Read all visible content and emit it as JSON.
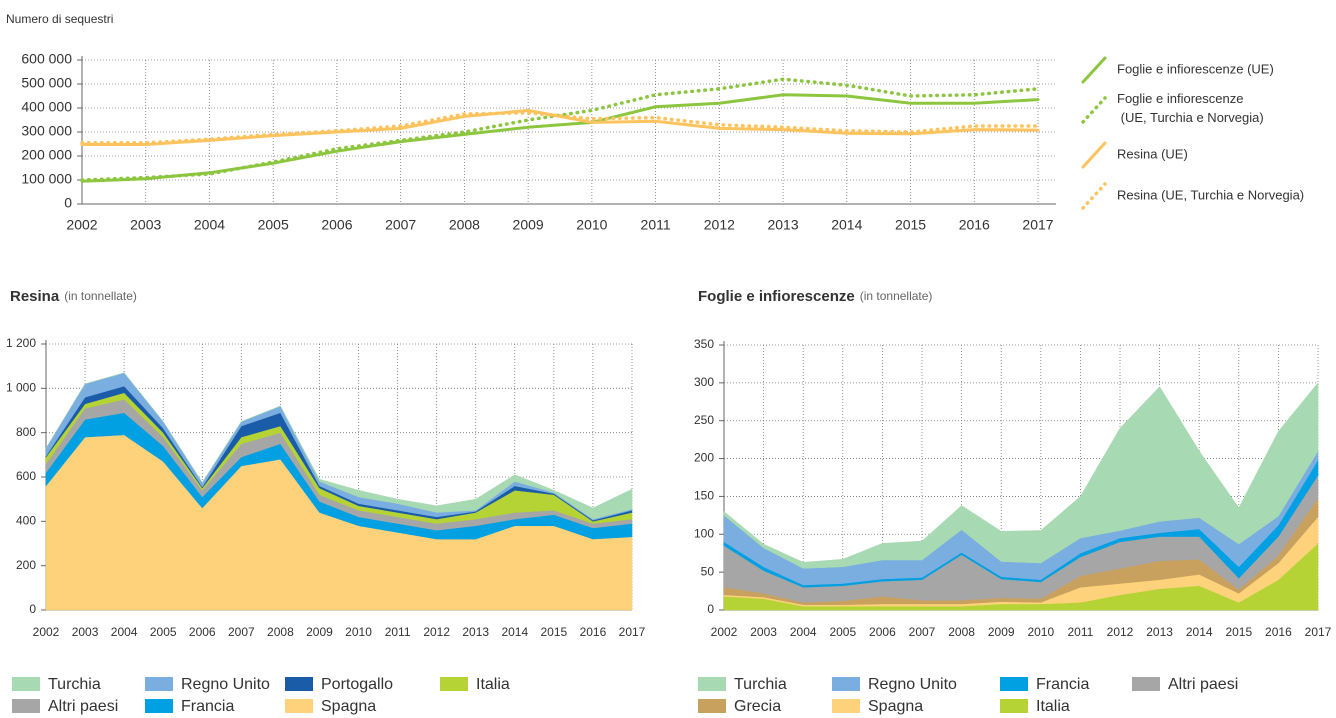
{
  "chart_data": [
    {
      "type": "line",
      "ylabel": "Numero di sequestri",
      "categories": [
        "2002",
        "2003",
        "2004",
        "2005",
        "2006",
        "2007",
        "2008",
        "2009",
        "2010",
        "2011",
        "2012",
        "2013",
        "2014",
        "2015",
        "2016",
        "2017"
      ],
      "ylim": [
        0,
        600000
      ],
      "yticks": [
        0,
        {
          "value": 100000,
          "label": "100 000"
        },
        {
          "value": 200000,
          "label": "200 000"
        },
        {
          "value": 300000,
          "label": "300 000"
        },
        {
          "value": 400000,
          "label": "400 000"
        },
        {
          "value": 500000,
          "label": "500 000"
        },
        {
          "value": 600000,
          "label": "600 000"
        }
      ],
      "grid": true,
      "legend": "right",
      "series": [
        {
          "name": "Foglie e infiorescenze (UE)",
          "color": "#8cc63f",
          "style": "solid",
          "values": [
            95000,
            105000,
            130000,
            170000,
            220000,
            260000,
            290000,
            320000,
            340000,
            405000,
            420000,
            455000,
            450000,
            420000,
            420000,
            435000
          ]
        },
        {
          "name": "Foglie e infiorescenze (UE, Turchia e Norvegia)",
          "color": "#8cc63f",
          "style": "dotted",
          "values": [
            100000,
            110000,
            125000,
            175000,
            230000,
            265000,
            300000,
            350000,
            390000,
            455000,
            480000,
            520000,
            495000,
            450000,
            455000,
            480000
          ]
        },
        {
          "name": "Resina (UE)",
          "color": "#fdc35e",
          "style": "solid",
          "values": [
            248000,
            248000,
            265000,
            285000,
            300000,
            315000,
            365000,
            390000,
            340000,
            345000,
            315000,
            310000,
            295000,
            292000,
            310000,
            308000
          ]
        },
        {
          "name": "Resina (UE, Turchia e Norvegia)",
          "color": "#fdc35e",
          "style": "dotted",
          "values": [
            255000,
            255000,
            270000,
            290000,
            305000,
            325000,
            375000,
            380000,
            355000,
            360000,
            330000,
            320000,
            305000,
            300000,
            325000,
            325000
          ]
        }
      ]
    },
    {
      "type": "area",
      "stacked": true,
      "title": "Resina",
      "subtitle": "(in tonnellate)",
      "categories": [
        "2002",
        "2003",
        "2004",
        "2005",
        "2006",
        "2007",
        "2008",
        "2009",
        "2010",
        "2011",
        "2012",
        "2013",
        "2014",
        "2015",
        "2016",
        "2017"
      ],
      "ylim": [
        0,
        1200
      ],
      "yticks": [
        0,
        200,
        400,
        600,
        800,
        {
          "value": 1000,
          "label": "1 000"
        },
        {
          "value": 1200,
          "label": "1 200"
        }
      ],
      "grid": true,
      "legend": "bottom",
      "series": [
        {
          "name": "Turchia",
          "color": "#a7d9b2",
          "values": [
            0,
            0,
            0,
            0,
            0,
            0,
            0,
            10,
            30,
            20,
            30,
            50,
            30,
            10,
            50,
            90
          ]
        },
        {
          "name": "Regno Unito",
          "color": "#7aaee0",
          "values": [
            35,
            60,
            60,
            30,
            20,
            20,
            30,
            20,
            30,
            30,
            20,
            5,
            20,
            5,
            5,
            5
          ]
        },
        {
          "name": "Portogallo",
          "color": "#1a5ca8",
          "values": [
            5,
            30,
            30,
            20,
            5,
            50,
            60,
            10,
            10,
            10,
            10,
            5,
            20,
            5,
            5,
            10
          ]
        },
        {
          "name": "Italia",
          "color": "#b5d334",
          "values": [
            30,
            20,
            30,
            20,
            10,
            30,
            30,
            30,
            20,
            20,
            20,
            30,
            100,
            70,
            10,
            30
          ]
        },
        {
          "name": "Altri paesi",
          "color": "#a6a6a6",
          "values": [
            40,
            50,
            60,
            40,
            30,
            60,
            50,
            30,
            30,
            30,
            30,
            30,
            30,
            20,
            20,
            20
          ]
        },
        {
          "name": "Francia",
          "color": "#00a0e3",
          "values": [
            60,
            80,
            100,
            70,
            50,
            40,
            70,
            50,
            40,
            40,
            40,
            60,
            30,
            50,
            50,
            60
          ]
        },
        {
          "name": "Spagna",
          "color": "#fed27a",
          "values": [
            560,
            780,
            790,
            670,
            460,
            650,
            680,
            440,
            380,
            350,
            320,
            320,
            380,
            380,
            320,
            330
          ]
        }
      ]
    },
    {
      "type": "area",
      "stacked": true,
      "title": "Foglie e infiorescenze",
      "subtitle": "(in tonnellate)",
      "categories": [
        "2002",
        "2003",
        "2004",
        "2005",
        "2006",
        "2007",
        "2008",
        "2009",
        "2010",
        "2011",
        "2012",
        "2013",
        "2014",
        "2015",
        "2016",
        "2017"
      ],
      "ylim": [
        0,
        350
      ],
      "yticks": [
        0,
        50,
        100,
        150,
        200,
        250,
        300,
        350
      ],
      "grid": true,
      "legend": "bottom",
      "series": [
        {
          "name": "Turchia",
          "color": "#a7d9b2",
          "values": [
            5,
            5,
            8,
            10,
            22,
            25,
            32,
            40,
            43,
            55,
            135,
            178,
            88,
            48,
            112,
            90
          ]
        },
        {
          "name": "Regno Unito",
          "color": "#7aaee0",
          "values": [
            35,
            25,
            22,
            22,
            25,
            23,
            30,
            20,
            22,
            20,
            10,
            15,
            15,
            30,
            12,
            12
          ]
        },
        {
          "name": "Francia",
          "color": "#00a0e3",
          "values": [
            5,
            5,
            3,
            3,
            3,
            3,
            3,
            3,
            3,
            5,
            5,
            5,
            10,
            15,
            15,
            20
          ]
        },
        {
          "name": "Altri paesi",
          "color": "#a6a6a6",
          "values": [
            55,
            30,
            20,
            20,
            20,
            27,
            60,
            25,
            22,
            25,
            35,
            32,
            30,
            15,
            25,
            30
          ]
        },
        {
          "name": "Grecia",
          "color": "#c9a15f",
          "values": [
            10,
            5,
            3,
            5,
            10,
            5,
            5,
            5,
            5,
            15,
            20,
            25,
            20,
            5,
            10,
            25
          ]
        },
        {
          "name": "Spagna",
          "color": "#fed27a",
          "values": [
            2,
            2,
            2,
            2,
            3,
            3,
            3,
            3,
            2,
            20,
            15,
            12,
            15,
            12,
            22,
            35
          ]
        },
        {
          "name": "Italia",
          "color": "#b5d334",
          "values": [
            18,
            15,
            5,
            5,
            5,
            5,
            5,
            8,
            8,
            10,
            20,
            28,
            32,
            10,
            40,
            88
          ]
        }
      ]
    }
  ]
}
